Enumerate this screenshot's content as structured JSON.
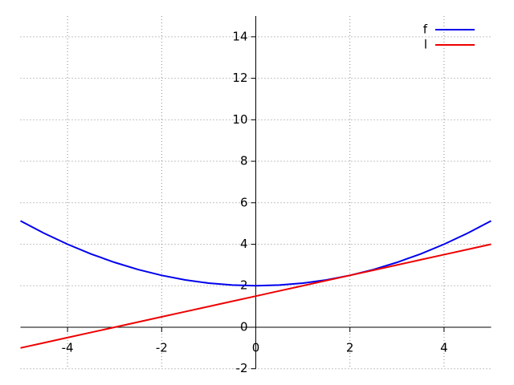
{
  "chart_data": {
    "type": "line",
    "x": [
      -5,
      -4.5,
      -4,
      -3.5,
      -3,
      -2.5,
      -2,
      -1.5,
      -1,
      -0.5,
      0,
      0.5,
      1,
      1.5,
      2,
      2.5,
      3,
      3.5,
      4,
      4.5,
      5
    ],
    "series": [
      {
        "name": "f",
        "color": "#0000ee",
        "values": [
          5.125,
          4.53125,
          4,
          3.53125,
          3.125,
          2.78125,
          2.5,
          2.28125,
          2.125,
          2.03125,
          2,
          2.03125,
          2.125,
          2.28125,
          2.5,
          2.78125,
          3.125,
          3.53125,
          4,
          4.53125,
          5.125
        ]
      },
      {
        "name": "l",
        "color": "#ee0000",
        "values": [
          -1,
          -0.75,
          -0.5,
          -0.25,
          0,
          0.25,
          0.5,
          0.75,
          1,
          1.25,
          1.5,
          1.75,
          2,
          2.25,
          2.5,
          2.75,
          3,
          3.25,
          3.5,
          3.75,
          4
        ]
      }
    ],
    "xlim": [
      -5,
      5
    ],
    "xticks": [
      -4,
      -2,
      0,
      2,
      4
    ],
    "ylim": [
      -2,
      15
    ],
    "yticks": [
      -2,
      0,
      2,
      4,
      6,
      8,
      10,
      12,
      14
    ],
    "grid": true,
    "legend": "top-right"
  }
}
